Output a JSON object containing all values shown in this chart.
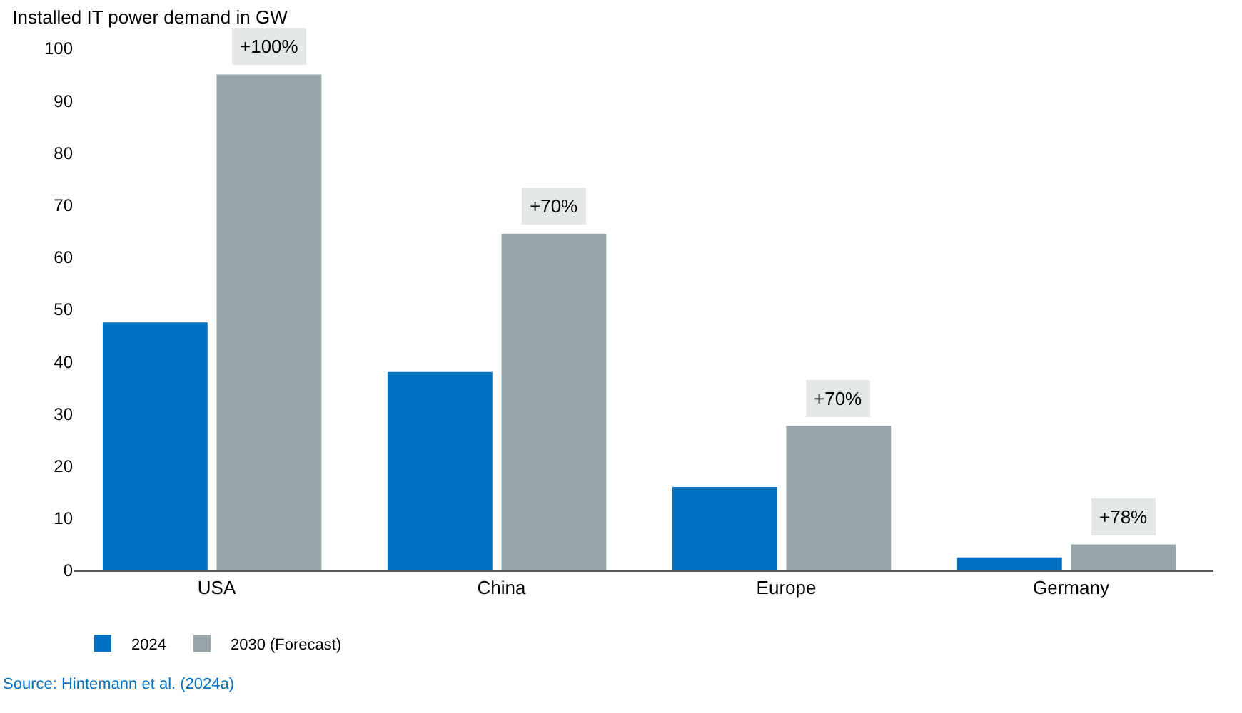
{
  "chart_data": {
    "type": "bar",
    "title": "Installed IT power demand in GW",
    "categories": [
      "USA",
      "China",
      "Europe",
      "Germany"
    ],
    "series": [
      {
        "name": "2024",
        "color": "#0070c0",
        "values": [
          47.5,
          38,
          16,
          2.5
        ]
      },
      {
        "name": "2030 (Forecast)",
        "color": "#97a4a8",
        "values": [
          95,
          64.5,
          27.7,
          5
        ]
      }
    ],
    "ylim": [
      0,
      100
    ],
    "yticks": [
      0,
      10,
      20,
      30,
      40,
      50,
      60,
      70,
      80,
      90,
      100
    ],
    "grid": false,
    "legend": "bottom left",
    "annotations": [
      {
        "text": "+100%",
        "x": "USA",
        "y": 95
      },
      {
        "text": "+70%",
        "x": "China",
        "y": 64.5
      },
      {
        "text": "+70%",
        "x": "Europe",
        "y": 27.7
      },
      {
        "text": "+78%",
        "x": "Germany",
        "y": 5
      },
      "Source: Hintemann et al. (2024a)"
    ]
  }
}
